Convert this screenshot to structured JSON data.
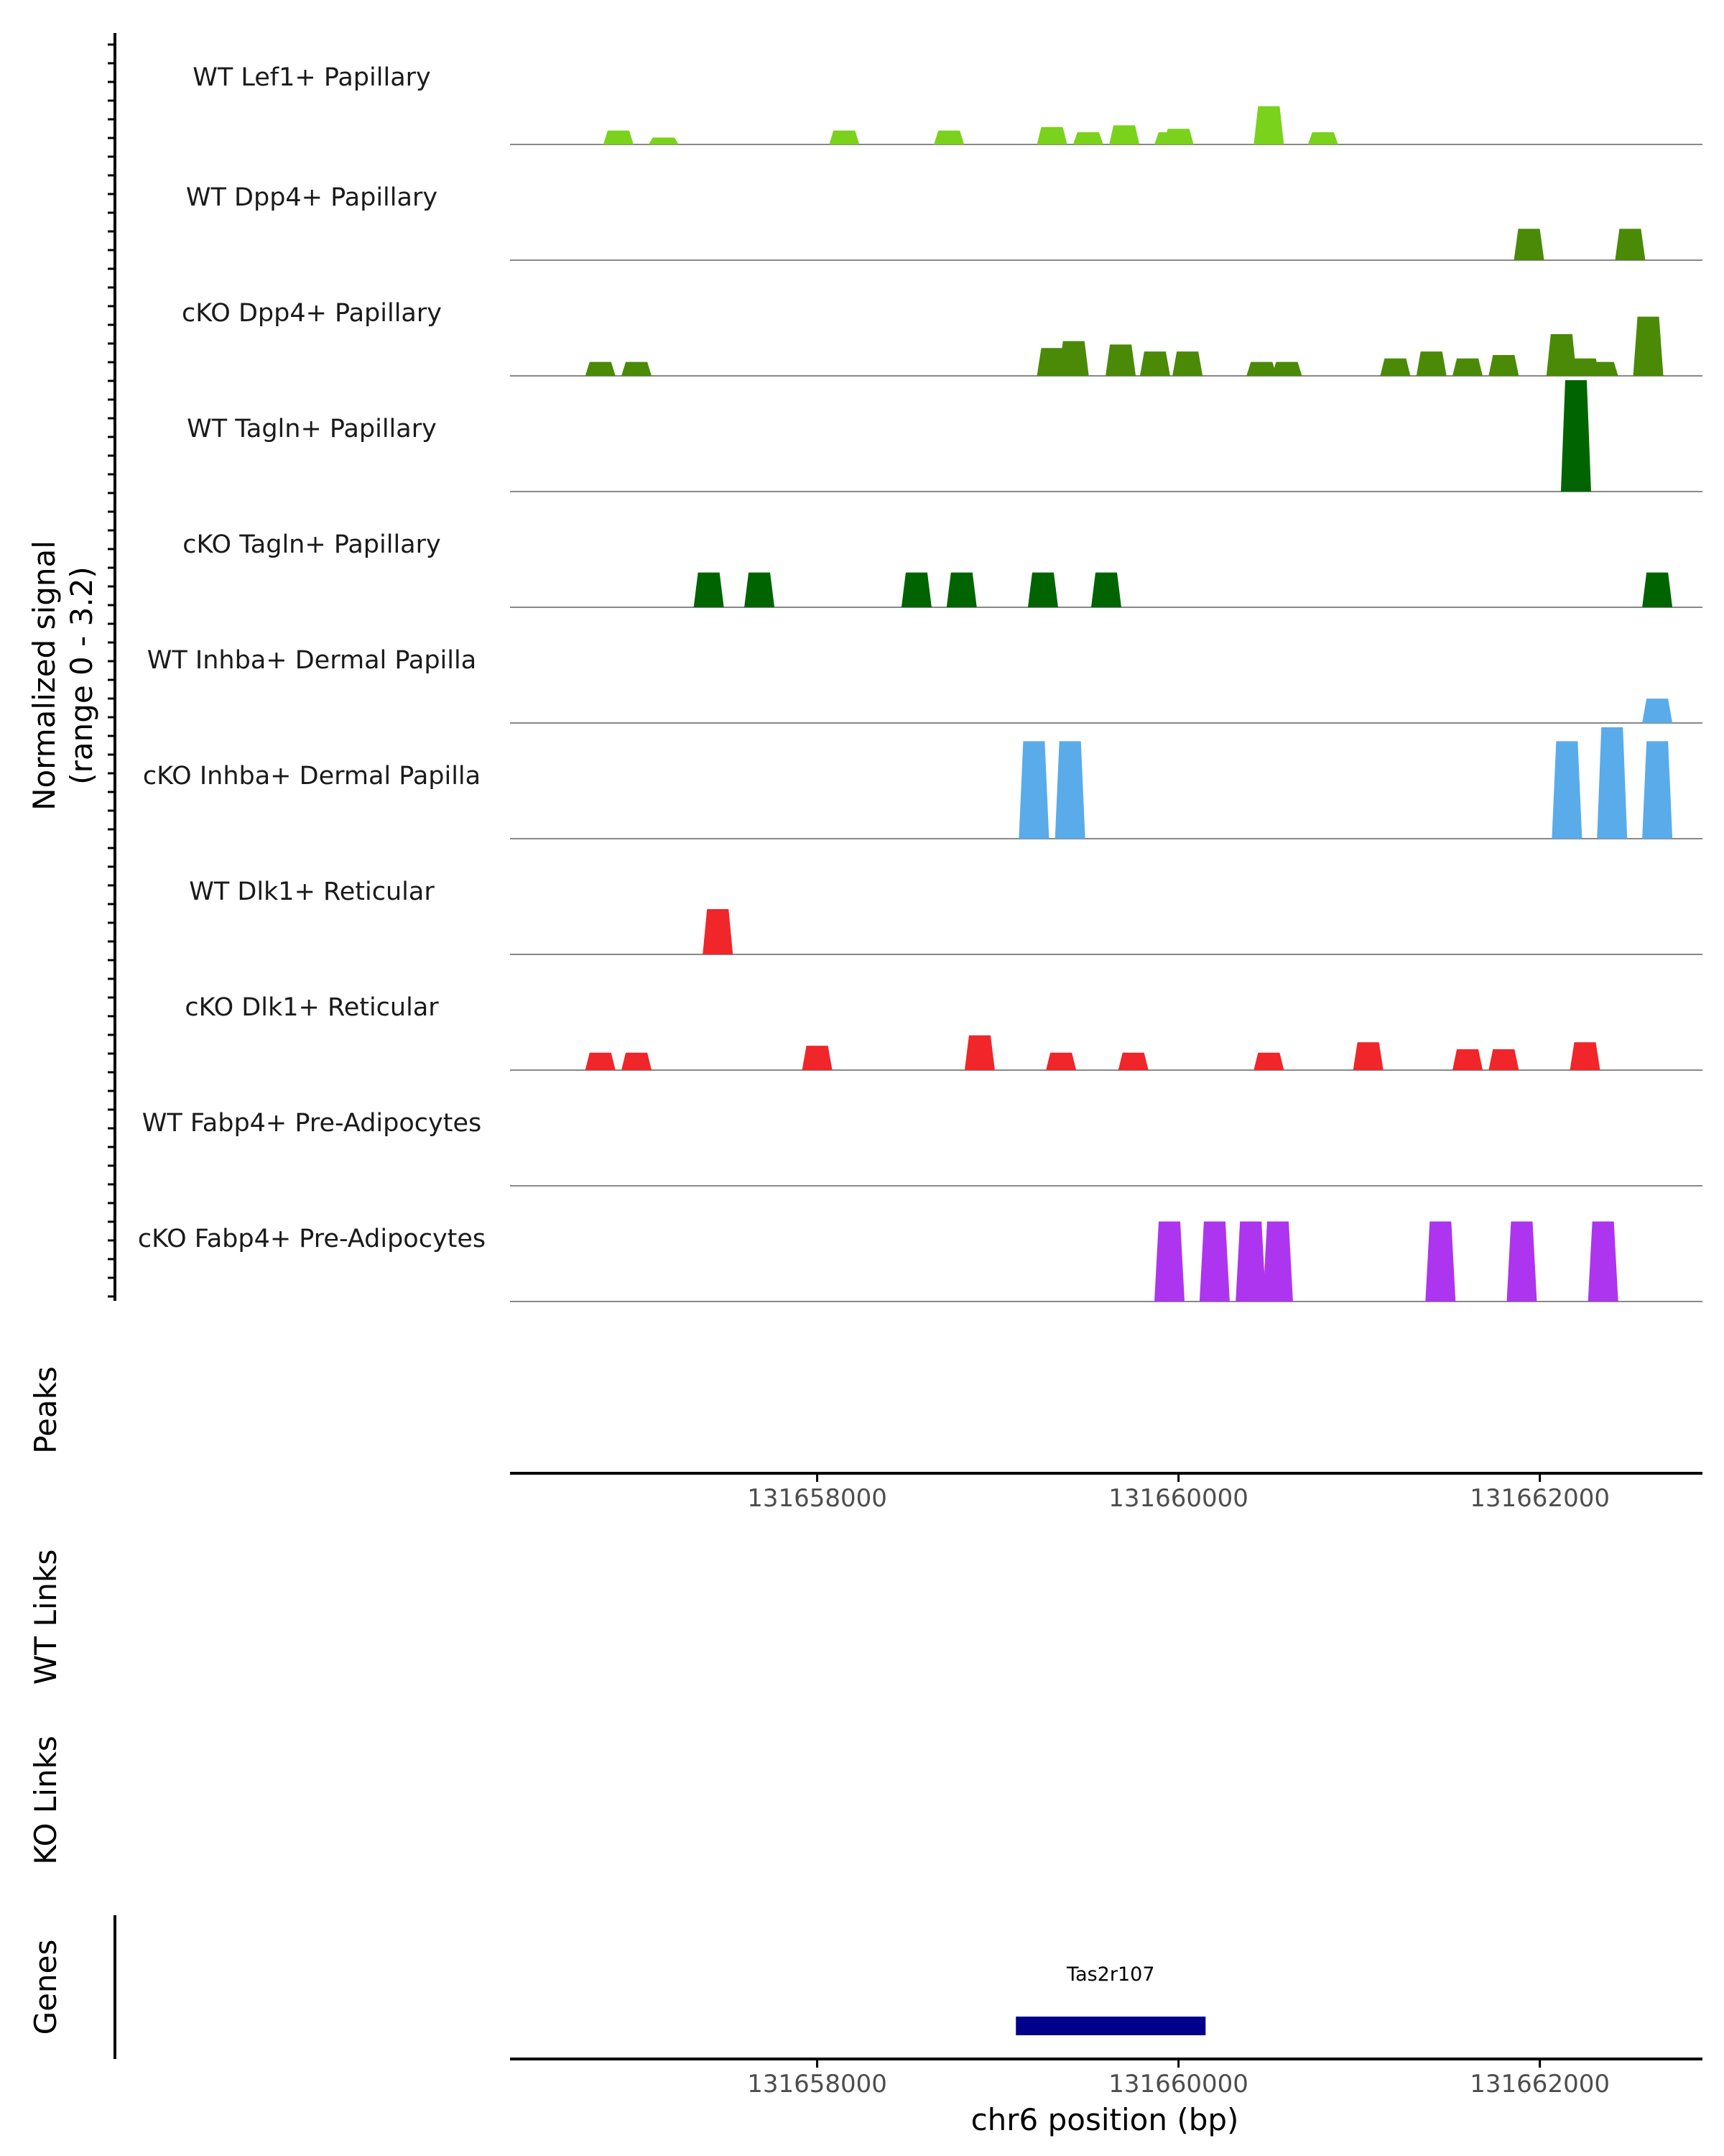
{
  "chart_data": {
    "type": "area",
    "title": "",
    "y_axis_title": "Normalized signal",
    "y_axis_subtitle": "(range 0 - 3.2)",
    "ylim": [
      0,
      3.2
    ],
    "xlim": [
      131656300,
      131662900
    ],
    "xlabel": "chr6 position (bp)",
    "x_ticks": [
      131658000,
      131660000,
      131662000
    ],
    "x_tick_labels": [
      "131658000",
      "131660000",
      "131662000"
    ],
    "section_labels": {
      "peaks": "Peaks",
      "wt_links": "WT Links",
      "ko_links": "KO Links",
      "genes": "Genes"
    },
    "series": [
      {
        "name": "WT Lef1+ Papillary",
        "color": "#7ad21c",
        "peaks": [
          [
            131656900,
            0.4
          ],
          [
            131657150,
            0.2
          ],
          [
            131658150,
            0.4
          ],
          [
            131658730,
            0.4
          ],
          [
            131659300,
            0.5
          ],
          [
            131659500,
            0.35
          ],
          [
            131659700,
            0.55
          ],
          [
            131659950,
            0.35
          ],
          [
            131660000,
            0.45
          ],
          [
            131660500,
            1.1
          ],
          [
            131660800,
            0.35
          ]
        ]
      },
      {
        "name": "WT Dpp4+ Papillary",
        "color": "#4a8a06",
        "peaks": [
          [
            131661940,
            0.9
          ],
          [
            131662500,
            0.9
          ]
        ]
      },
      {
        "name": "cKO Dpp4+ Papillary",
        "color": "#4a8a06",
        "peaks": [
          [
            131656800,
            0.4
          ],
          [
            131657000,
            0.4
          ],
          [
            131659300,
            0.8
          ],
          [
            131659420,
            1.0
          ],
          [
            131659680,
            0.9
          ],
          [
            131659870,
            0.7
          ],
          [
            131660050,
            0.7
          ],
          [
            131660460,
            0.4
          ],
          [
            131660600,
            0.4
          ],
          [
            131661200,
            0.5
          ],
          [
            131661400,
            0.7
          ],
          [
            131661600,
            0.5
          ],
          [
            131661800,
            0.6
          ],
          [
            131662120,
            1.2
          ],
          [
            131662250,
            0.5
          ],
          [
            131662350,
            0.4
          ],
          [
            131662600,
            1.7
          ]
        ]
      },
      {
        "name": "WT Tagln+ Papillary",
        "color": "#006400",
        "peaks": [
          [
            131662200,
            3.2
          ]
        ]
      },
      {
        "name": "cKO Tagln+ Papillary",
        "color": "#006400",
        "peaks": [
          [
            131657400,
            1.0
          ],
          [
            131657680,
            1.0
          ],
          [
            131658550,
            1.0
          ],
          [
            131658800,
            1.0
          ],
          [
            131659250,
            1.0
          ],
          [
            131659600,
            1.0
          ],
          [
            131662650,
            1.0
          ]
        ]
      },
      {
        "name": "WT Inhba+ Dermal Papilla",
        "color": "#5aabea",
        "peaks": [
          [
            131662650,
            0.7
          ]
        ]
      },
      {
        "name": "cKO Inhba+ Dermal Papilla",
        "color": "#5aabea",
        "peaks": [
          [
            131659200,
            2.8
          ],
          [
            131659400,
            2.8
          ],
          [
            131662150,
            2.8
          ],
          [
            131662400,
            3.2
          ],
          [
            131662650,
            2.8
          ]
        ]
      },
      {
        "name": "WT Dlk1+ Reticular",
        "color": "#f0262a",
        "peaks": [
          [
            131657450,
            1.3
          ]
        ]
      },
      {
        "name": "cKO Dlk1+ Reticular",
        "color": "#f0262a",
        "peaks": [
          [
            131656800,
            0.5
          ],
          [
            131657000,
            0.5
          ],
          [
            131658000,
            0.7
          ],
          [
            131658900,
            1.0
          ],
          [
            131659350,
            0.5
          ],
          [
            131659750,
            0.5
          ],
          [
            131660500,
            0.5
          ],
          [
            131661050,
            0.8
          ],
          [
            131661600,
            0.6
          ],
          [
            131661800,
            0.6
          ],
          [
            131662250,
            0.8
          ]
        ]
      },
      {
        "name": "WT Fabp4+ Pre-Adipocytes",
        "color": "#ad35f0",
        "peaks": []
      },
      {
        "name": "cKO Fabp4+ Pre-Adipocytes",
        "color": "#ad35f0",
        "peaks": [
          [
            131659950,
            2.3
          ],
          [
            131660200,
            2.3
          ],
          [
            131660400,
            2.3
          ],
          [
            131660550,
            2.3
          ],
          [
            131661450,
            2.3
          ],
          [
            131661900,
            2.3
          ],
          [
            131662350,
            2.3
          ]
        ]
      }
    ],
    "genes": [
      {
        "name": "Tas2r107",
        "start": 131659100,
        "end": 131660150,
        "color": "#00008b"
      }
    ]
  }
}
